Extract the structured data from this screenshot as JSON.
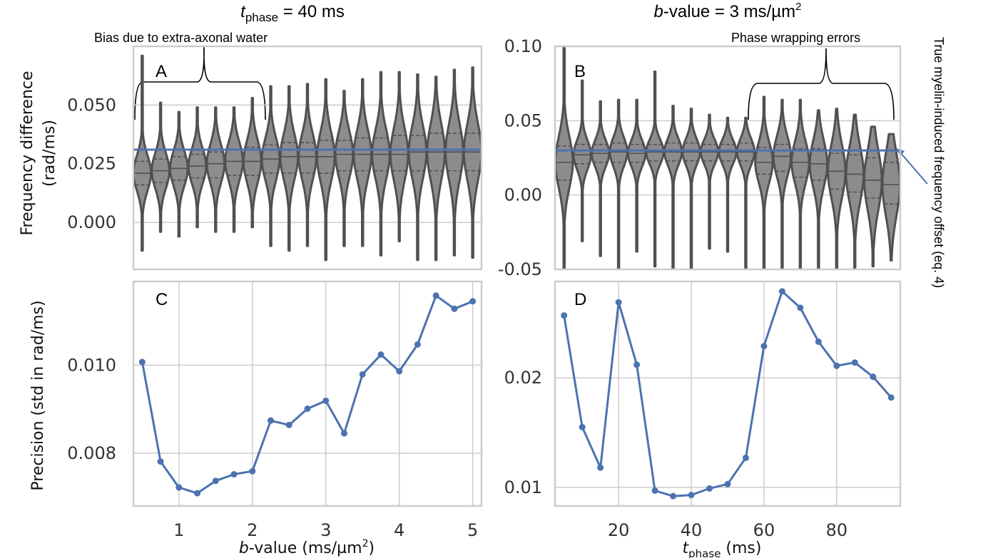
{
  "titles": {
    "left": {
      "var": "t",
      "sub": "phase",
      "rest": " = 40 ms"
    },
    "right": {
      "pre": "b",
      "rest": "-value = 3 ms/µm",
      "sup": "2"
    }
  },
  "annotations": {
    "bias": "Bias due to extra-axonal water",
    "wrapping": "Phase wrapping errors",
    "true_offset": "True myelin-induced frequency offset (eq. 4)"
  },
  "axes_labels": {
    "ylabel_top_1": "Frequency difference",
    "ylabel_top_2": "(rad/ms)",
    "ylabel_bottom": "Precision (std in rad/ms)",
    "xlabel_left": {
      "var": "b",
      "rest": "-value (ms/µm",
      "sup": "2",
      "end": ")"
    },
    "xlabel_right": {
      "var": "t",
      "sub": "phase",
      "rest": " (ms)"
    }
  },
  "chart_data": [
    {
      "panel": "A",
      "type": "violin",
      "x": [
        0.5,
        0.75,
        1.0,
        1.25,
        1.5,
        1.75,
        2.0,
        2.25,
        2.5,
        2.75,
        3.0,
        3.25,
        3.5,
        3.75,
        4.0,
        4.25,
        4.5,
        4.75,
        5.0
      ],
      "median": [
        0.021,
        0.022,
        0.023,
        0.024,
        0.025,
        0.026,
        0.026,
        0.027,
        0.028,
        0.028,
        0.028,
        0.029,
        0.029,
        0.029,
        0.029,
        0.03,
        0.03,
        0.03,
        0.03
      ],
      "q1": [
        0.016,
        0.017,
        0.018,
        0.019,
        0.019,
        0.02,
        0.02,
        0.021,
        0.021,
        0.021,
        0.021,
        0.022,
        0.022,
        0.022,
        0.022,
        0.022,
        0.022,
        0.022,
        0.022
      ],
      "q3": [
        0.026,
        0.027,
        0.028,
        0.029,
        0.03,
        0.031,
        0.032,
        0.033,
        0.034,
        0.034,
        0.035,
        0.035,
        0.036,
        0.036,
        0.037,
        0.037,
        0.038,
        0.038,
        0.038
      ],
      "min": [
        -0.012,
        -0.004,
        -0.006,
        -0.002,
        -0.004,
        -0.004,
        -0.002,
        -0.01,
        -0.012,
        -0.01,
        -0.016,
        -0.01,
        -0.01,
        -0.014,
        -0.008,
        -0.016,
        -0.016,
        -0.014,
        -0.015
      ],
      "max": [
        0.071,
        0.051,
        0.047,
        0.049,
        0.049,
        0.049,
        0.053,
        0.058,
        0.058,
        0.059,
        0.061,
        0.056,
        0.061,
        0.064,
        0.064,
        0.063,
        0.062,
        0.065,
        0.066
      ],
      "reference_line": 0.031,
      "ylim": [
        -0.02,
        0.075
      ],
      "yticks": [
        "0.000",
        "0.025",
        "0.050"
      ],
      "ytick_values": [
        0.0,
        0.025,
        0.05
      ],
      "xlim": [
        0.38,
        5.12
      ],
      "grid": true
    },
    {
      "panel": "B",
      "type": "violin",
      "x": [
        5,
        10,
        15,
        20,
        25,
        30,
        35,
        40,
        45,
        50,
        55,
        60,
        65,
        70,
        75,
        80,
        85,
        90,
        95
      ],
      "median": [
        0.022,
        0.027,
        0.028,
        0.029,
        0.028,
        0.029,
        0.029,
        0.029,
        0.029,
        0.029,
        0.029,
        0.022,
        0.026,
        0.022,
        0.021,
        0.016,
        0.014,
        0.01,
        0.007
      ],
      "q1": [
        0.01,
        0.021,
        0.022,
        0.022,
        0.022,
        0.023,
        0.023,
        0.023,
        0.023,
        0.023,
        0.023,
        0.014,
        0.016,
        0.012,
        0.01,
        0.004,
        0.002,
        -0.002,
        -0.006
      ],
      "q3": [
        0.033,
        0.034,
        0.034,
        0.035,
        0.034,
        0.034,
        0.035,
        0.035,
        0.034,
        0.034,
        0.035,
        0.032,
        0.034,
        0.031,
        0.031,
        0.028,
        0.027,
        0.025,
        0.022
      ],
      "min": [
        -0.05,
        -0.031,
        -0.041,
        -0.05,
        -0.038,
        -0.048,
        -0.05,
        -0.05,
        -0.036,
        -0.038,
        -0.05,
        -0.05,
        -0.05,
        -0.05,
        -0.05,
        -0.05,
        -0.05,
        -0.048,
        -0.044
      ],
      "max": [
        0.1,
        0.077,
        0.063,
        0.064,
        0.064,
        0.083,
        0.06,
        0.058,
        0.054,
        0.052,
        0.052,
        0.066,
        0.064,
        0.064,
        0.057,
        0.058,
        0.054,
        0.046,
        0.041
      ],
      "reference_line": 0.03,
      "ylim": [
        -0.05,
        0.1
      ],
      "yticks": [
        "-0.05",
        "0.00",
        "0.05",
        "0.10"
      ],
      "ytick_values": [
        -0.05,
        0.0,
        0.05,
        0.1
      ],
      "xlim": [
        2.5,
        97.5
      ],
      "grid": true
    },
    {
      "panel": "C",
      "type": "line",
      "x": [
        0.5,
        0.75,
        1.0,
        1.25,
        1.5,
        1.75,
        2.0,
        2.25,
        2.5,
        2.75,
        3.0,
        3.25,
        3.5,
        3.75,
        4.0,
        4.25,
        4.5,
        4.75,
        5.0
      ],
      "y": [
        0.01007,
        0.00781,
        0.00722,
        0.00709,
        0.00737,
        0.00752,
        0.00759,
        0.00874,
        0.00864,
        0.00901,
        0.00919,
        0.00845,
        0.00979,
        0.01024,
        0.00986,
        0.01047,
        0.01158,
        0.01128,
        0.01145
      ],
      "xlabel": "b-value (ms/µm2)",
      "ylabel": "Precision (std in rad/ms)",
      "xticks": [
        "1",
        "2",
        "3",
        "4",
        "5"
      ],
      "xtick_values": [
        1,
        2,
        3,
        4,
        5
      ],
      "yticks": [
        "0.008",
        "0.010"
      ],
      "ytick_values": [
        0.008,
        0.01
      ],
      "xlim": [
        0.38,
        5.12
      ],
      "ylim": [
        0.0068,
        0.0119
      ],
      "grid": true
    },
    {
      "panel": "D",
      "type": "line",
      "x": [
        5,
        10,
        15,
        20,
        25,
        30,
        35,
        40,
        45,
        50,
        55,
        60,
        65,
        70,
        75,
        80,
        85,
        90,
        95
      ],
      "y": [
        0.0257,
        0.0155,
        0.0118,
        0.0269,
        0.0212,
        0.0097,
        0.0092,
        0.0093,
        0.0099,
        0.0103,
        0.0127,
        0.0229,
        0.0279,
        0.0264,
        0.0233,
        0.0211,
        0.0214,
        0.0201,
        0.0182
      ],
      "xlabel": "t_phase (ms)",
      "xticks": [
        "20",
        "40",
        "60",
        "80"
      ],
      "xtick_values": [
        20,
        40,
        60,
        80
      ],
      "yticks": [
        "0.01",
        "0.02"
      ],
      "ytick_values": [
        0.01,
        0.02
      ],
      "xlim": [
        2.5,
        97.5
      ],
      "ylim": [
        0.0083,
        0.0288
      ],
      "grid": true
    }
  ],
  "panel_labels": [
    "A",
    "B",
    "C",
    "D"
  ],
  "colors": {
    "line": "#4c72b0",
    "violin_fill": "#8c8c8c",
    "violin_edge": "#505050",
    "frame": "#cccccc"
  }
}
